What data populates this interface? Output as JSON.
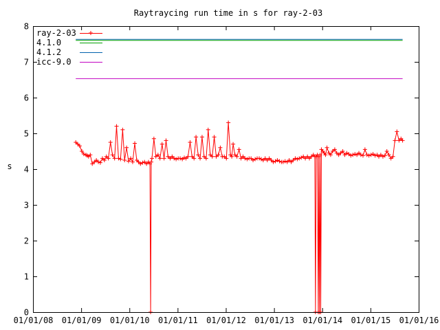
{
  "chart_data": {
    "type": "line",
    "title": "Raytraycing run time in s for ray-2-03",
    "xlabel": "",
    "ylabel": "s",
    "ylim": [
      0,
      8
    ],
    "xlim": [
      "2008-01-01",
      "2016-01-01"
    ],
    "yticks": [
      0,
      1,
      2,
      3,
      4,
      5,
      6,
      7,
      8
    ],
    "xticks": [
      "01/01/08",
      "01/01/09",
      "01/01/10",
      "01/01/11",
      "01/01/12",
      "01/01/13",
      "01/01/14",
      "01/01/15",
      "01/01/16"
    ],
    "legend_position": "top-left",
    "grid": false,
    "series": [
      {
        "name": "ray-2-03",
        "color": "#ff0000",
        "style": "linespoints",
        "marker": "plus",
        "x": [
          "2008-11-20",
          "2008-12-05",
          "2008-12-20",
          "2009-01-05",
          "2009-01-20",
          "2009-02-05",
          "2009-02-15",
          "2009-02-25",
          "2009-03-10",
          "2009-03-25",
          "2009-04-10",
          "2009-04-25",
          "2009-05-10",
          "2009-05-25",
          "2009-06-10",
          "2009-06-25",
          "2009-07-10",
          "2009-07-25",
          "2009-08-10",
          "2009-08-25",
          "2009-09-10",
          "2009-09-25",
          "2009-10-10",
          "2009-10-25",
          "2009-11-10",
          "2009-11-25",
          "2009-12-10",
          "2009-12-25",
          "2010-01-10",
          "2010-01-25",
          "2010-02-10",
          "2010-02-25",
          "2010-03-10",
          "2010-03-25",
          "2010-04-10",
          "2010-04-25",
          "2010-05-10",
          "2010-05-25",
          "2010-06-05",
          "2010-06-10",
          "2010-06-15",
          "2010-06-20",
          "2010-07-05",
          "2010-07-20",
          "2010-08-05",
          "2010-08-20",
          "2010-09-05",
          "2010-09-20",
          "2010-10-05",
          "2010-10-20",
          "2010-11-05",
          "2010-11-20",
          "2010-12-05",
          "2010-12-20",
          "2011-01-05",
          "2011-01-20",
          "2011-02-05",
          "2011-02-20",
          "2011-03-05",
          "2011-03-20",
          "2011-04-05",
          "2011-04-20",
          "2011-05-05",
          "2011-05-20",
          "2011-06-05",
          "2011-06-20",
          "2011-07-05",
          "2011-07-20",
          "2011-08-05",
          "2011-08-20",
          "2011-09-05",
          "2011-09-20",
          "2011-10-05",
          "2011-10-20",
          "2011-11-05",
          "2011-11-20",
          "2011-12-05",
          "2011-12-20",
          "2012-01-05",
          "2012-01-20",
          "2012-02-05",
          "2012-02-15",
          "2012-02-25",
          "2012-03-10",
          "2012-03-25",
          "2012-04-10",
          "2012-04-25",
          "2012-05-10",
          "2012-05-25",
          "2012-06-10",
          "2012-06-25",
          "2012-07-10",
          "2012-07-25",
          "2012-08-10",
          "2012-08-25",
          "2012-09-10",
          "2012-09-25",
          "2012-10-10",
          "2012-10-25",
          "2012-11-10",
          "2012-11-25",
          "2012-12-10",
          "2012-12-25",
          "2013-01-10",
          "2013-01-25",
          "2013-02-10",
          "2013-02-25",
          "2013-03-10",
          "2013-03-25",
          "2013-04-10",
          "2013-04-25",
          "2013-05-10",
          "2013-05-25",
          "2013-06-10",
          "2013-06-25",
          "2013-07-10",
          "2013-07-25",
          "2013-08-10",
          "2013-08-25",
          "2013-09-10",
          "2013-09-25",
          "2013-10-10",
          "2013-10-25",
          "2013-11-05",
          "2013-11-10",
          "2013-11-15",
          "2013-11-25",
          "2013-12-01",
          "2013-12-05",
          "2013-12-10",
          "2013-12-15",
          "2013-12-20",
          "2013-12-25",
          "2014-01-05",
          "2014-01-15",
          "2014-01-25",
          "2014-02-05",
          "2014-02-20",
          "2014-03-05",
          "2014-03-20",
          "2014-04-05",
          "2014-04-20",
          "2014-05-05",
          "2014-05-20",
          "2014-06-05",
          "2014-06-20",
          "2014-07-05",
          "2014-07-20",
          "2014-08-05",
          "2014-08-20",
          "2014-09-05",
          "2014-09-20",
          "2014-10-05",
          "2014-10-20",
          "2014-11-05",
          "2014-11-20",
          "2014-12-05",
          "2014-12-20",
          "2015-01-05",
          "2015-01-20",
          "2015-02-05",
          "2015-02-20",
          "2015-03-05",
          "2015-03-20",
          "2015-04-05",
          "2015-04-20",
          "2015-05-05",
          "2015-05-20",
          "2015-06-05",
          "2015-06-20",
          "2015-07-05",
          "2015-07-20",
          "2015-08-05",
          "2015-08-20",
          "2015-09-01"
        ],
        "y": [
          4.75,
          4.7,
          4.65,
          4.5,
          4.42,
          4.4,
          4.38,
          4.35,
          4.4,
          4.15,
          4.2,
          4.25,
          4.2,
          4.18,
          4.3,
          4.25,
          4.35,
          4.3,
          4.75,
          4.4,
          4.3,
          5.2,
          4.3,
          4.28,
          5.1,
          4.25,
          4.6,
          4.22,
          4.3,
          4.2,
          4.72,
          4.25,
          4.2,
          4.15,
          4.18,
          4.2,
          4.15,
          4.2,
          4.15,
          0,
          4.2,
          4.3,
          4.85,
          4.35,
          4.4,
          4.3,
          4.7,
          4.3,
          4.8,
          4.35,
          4.3,
          4.35,
          4.3,
          4.28,
          4.3,
          4.3,
          4.28,
          4.32,
          4.3,
          4.35,
          4.75,
          4.35,
          4.3,
          4.9,
          4.4,
          4.3,
          4.9,
          4.35,
          4.3,
          5.1,
          4.4,
          4.35,
          4.9,
          4.35,
          4.4,
          4.6,
          4.35,
          4.35,
          4.3,
          5.3,
          4.4,
          4.35,
          4.7,
          4.4,
          4.35,
          4.55,
          4.3,
          4.35,
          4.3,
          4.28,
          4.3,
          4.3,
          4.25,
          4.28,
          4.3,
          4.3,
          4.28,
          4.25,
          4.3,
          4.25,
          4.3,
          4.25,
          4.2,
          4.22,
          4.25,
          4.22,
          4.2,
          4.2,
          4.22,
          4.2,
          4.25,
          4.2,
          4.25,
          4.3,
          4.28,
          4.3,
          4.32,
          4.35,
          4.3,
          4.35,
          4.3,
          4.35,
          4.4,
          4.35,
          0,
          4.35,
          4.4,
          0,
          4.35,
          0,
          4.4,
          0,
          4.55,
          4.5,
          4.45,
          4.4,
          4.6,
          4.45,
          4.4,
          4.5,
          4.55,
          4.45,
          4.4,
          4.45,
          4.5,
          4.4,
          4.45,
          4.42,
          4.38,
          4.4,
          4.42,
          4.4,
          4.45,
          4.4,
          4.38,
          4.55,
          4.4,
          4.38,
          4.4,
          4.42,
          4.38,
          4.4,
          4.35,
          4.4,
          4.35,
          4.38,
          4.5,
          4.4,
          4.3,
          4.35,
          4.8,
          5.05,
          4.8,
          4.85,
          4.8
        ]
      },
      {
        "name": "4.1.0",
        "color": "#00a000",
        "style": "line",
        "x": [
          "2008-11-20",
          "2015-09-01"
        ],
        "y": [
          7.6,
          7.6
        ]
      },
      {
        "name": "4.1.2",
        "color": "#0060ad",
        "style": "line",
        "x": [
          "2008-11-20",
          "2015-09-01"
        ],
        "y": [
          7.63,
          7.63
        ]
      },
      {
        "name": "icc-9.0",
        "color": "#c000c0",
        "style": "line",
        "x": [
          "2008-11-20",
          "2015-09-01"
        ],
        "y": [
          6.53,
          6.53
        ]
      }
    ]
  }
}
